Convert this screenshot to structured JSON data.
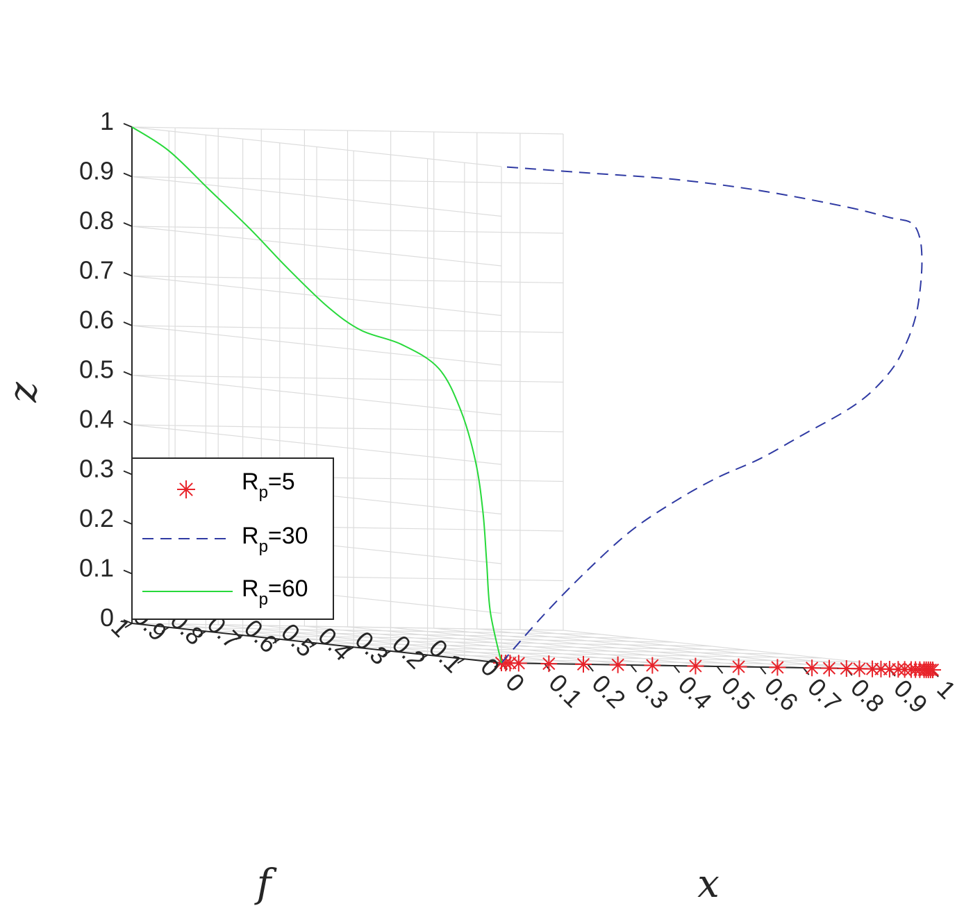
{
  "chart_data": {
    "type": "line",
    "projection": "3d",
    "xlabel": "x",
    "ylabel": "f",
    "zlabel": "z",
    "xlim": [
      0,
      1
    ],
    "ylim": [
      0,
      1
    ],
    "zlim": [
      0,
      1
    ],
    "x_ticks": [
      "0",
      "0.1",
      "0.2",
      "0.3",
      "0.4",
      "0.5",
      "0.6",
      "0.7",
      "0.8",
      "0.9",
      "1"
    ],
    "y_ticks": [
      "0",
      "0.1",
      "0.2",
      "0.3",
      "0.4",
      "0.5",
      "0.6",
      "0.7",
      "0.8",
      "0.9",
      "1"
    ],
    "z_ticks": [
      "0",
      "0.1",
      "0.2",
      "0.3",
      "0.4",
      "0.5",
      "0.6",
      "0.7",
      "0.8",
      "0.9",
      "1"
    ],
    "grid": true,
    "legend_position": "middle-left",
    "series": [
      {
        "name": "R",
        "name_sub": "p",
        "name_tail": "=5",
        "style": "markers",
        "marker": "asterisk",
        "color": "#e8232a",
        "points": [
          [
            0.0,
            0.0,
            0.0
          ],
          [
            0.01,
            0.0,
            0.0
          ],
          [
            0.02,
            0.0,
            0.0
          ],
          [
            0.04,
            0.0,
            0.0
          ],
          [
            0.11,
            0.0,
            0.0
          ],
          [
            0.19,
            0.0,
            0.0
          ],
          [
            0.27,
            0.0,
            0.0
          ],
          [
            0.35,
            0.0,
            0.0
          ],
          [
            0.45,
            0.0,
            0.0
          ],
          [
            0.55,
            0.0,
            0.0
          ],
          [
            0.64,
            0.0,
            0.0
          ],
          [
            0.72,
            0.0,
            0.0
          ],
          [
            0.76,
            0.0,
            0.0
          ],
          [
            0.8,
            0.0,
            0.0
          ],
          [
            0.83,
            0.0,
            0.0
          ],
          [
            0.86,
            0.0,
            0.0
          ],
          [
            0.88,
            0.0,
            0.0
          ],
          [
            0.9,
            0.0,
            0.0
          ],
          [
            0.92,
            0.0,
            0.0
          ],
          [
            0.935,
            0.0,
            0.0
          ],
          [
            0.95,
            0.0,
            0.0
          ],
          [
            0.96,
            0.0,
            0.0
          ],
          [
            0.97,
            0.0,
            0.0
          ],
          [
            0.98,
            0.0,
            0.0
          ],
          [
            0.985,
            0.0,
            0.0
          ],
          [
            0.99,
            0.0,
            0.0
          ],
          [
            0.995,
            0.0,
            0.0
          ],
          [
            1.0,
            0.0,
            0.0
          ]
        ]
      },
      {
        "name": "R",
        "name_sub": "p",
        "name_tail": "=30",
        "style": "dashed",
        "color": "#2f3aa3",
        "points": [
          [
            0.0,
            0.0,
            0.0
          ],
          [
            0.1,
            0.0,
            0.1
          ],
          [
            0.2,
            0.0,
            0.19
          ],
          [
            0.3,
            0.0,
            0.27
          ],
          [
            0.4,
            0.0,
            0.33
          ],
          [
            0.5,
            0.0,
            0.38
          ],
          [
            0.6,
            0.0,
            0.42
          ],
          [
            0.7,
            0.0,
            0.47
          ],
          [
            0.8,
            0.0,
            0.52
          ],
          [
            0.86,
            0.0,
            0.56
          ],
          [
            0.91,
            0.0,
            0.61
          ],
          [
            0.94,
            0.0,
            0.66
          ],
          [
            0.96,
            0.0,
            0.71
          ],
          [
            0.97,
            0.0,
            0.76
          ],
          [
            0.975,
            0.0,
            0.82
          ],
          [
            0.97,
            0.0,
            0.87
          ],
          [
            0.95,
            0.0,
            0.9
          ],
          [
            0.9,
            0.0,
            0.91
          ],
          [
            0.8,
            0.0,
            0.93
          ],
          [
            0.6,
            0.0,
            0.96
          ],
          [
            0.4,
            0.0,
            0.98
          ],
          [
            0.2,
            0.0,
            0.99
          ],
          [
            0.0,
            0.0,
            1.0
          ]
        ]
      },
      {
        "name": "R",
        "name_sub": "p",
        "name_tail": "=60",
        "style": "solid",
        "color": "#27d93a",
        "points": [
          [
            0.0,
            0.0,
            0.0
          ],
          [
            0.0,
            0.03,
            0.1
          ],
          [
            0.0,
            0.04,
            0.2
          ],
          [
            0.0,
            0.05,
            0.3
          ],
          [
            0.0,
            0.07,
            0.4
          ],
          [
            0.0,
            0.11,
            0.5
          ],
          [
            0.0,
            0.17,
            0.58
          ],
          [
            0.0,
            0.27,
            0.62
          ],
          [
            0.0,
            0.38,
            0.64
          ],
          [
            0.0,
            0.47,
            0.68
          ],
          [
            0.0,
            0.58,
            0.75
          ],
          [
            0.0,
            0.68,
            0.82
          ],
          [
            0.0,
            0.79,
            0.89
          ],
          [
            0.0,
            0.9,
            0.96
          ],
          [
            0.0,
            1.0,
            1.0
          ]
        ]
      }
    ]
  }
}
